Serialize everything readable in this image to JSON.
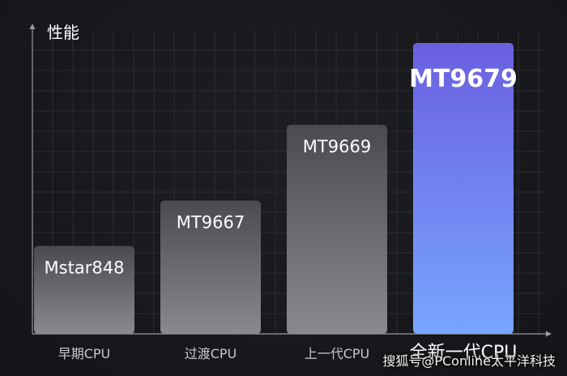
{
  "chart_data": {
    "type": "bar",
    "ylabel": "性能",
    "categories": [
      "早期CPU",
      "过渡CPU",
      "上一代CPU",
      "全新一代CPU"
    ],
    "bar_labels": [
      "Mstar848",
      "MT9667",
      "MT9669",
      "MT9679"
    ],
    "values": [
      29,
      44,
      69,
      96
    ],
    "ylim": [
      0,
      100
    ],
    "grid": true,
    "highlight_index": 3
  },
  "colors": {
    "background": "#17181c",
    "grid": "#2c2d33",
    "bar_top": "#4a4a4f",
    "bar_bottom": "#8a8a8e",
    "highlight_top": "#6a5fe0",
    "highlight_bottom": "#78a6ff",
    "text": "#ffffff",
    "axis_text": "#c9c9cc"
  },
  "watermark": "搜狐号@PConline太平洋科技"
}
